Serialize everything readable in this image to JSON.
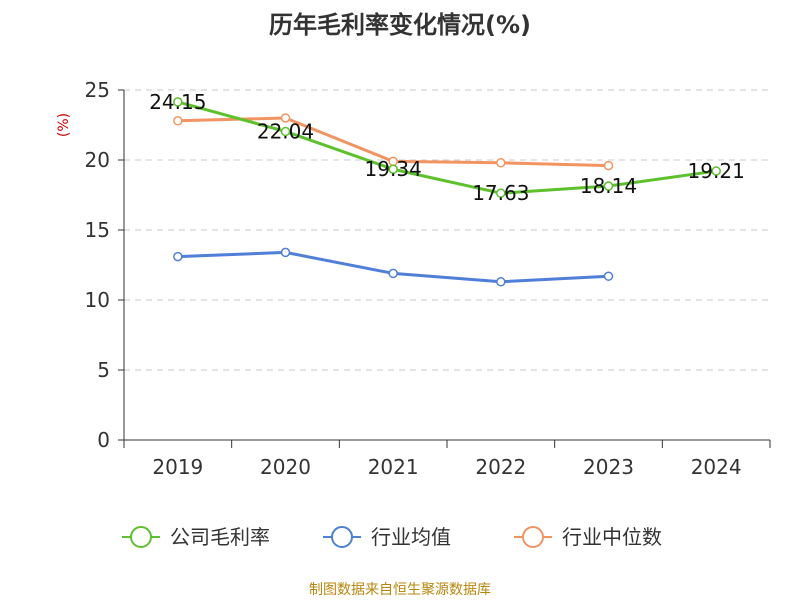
{
  "chart_data": {
    "type": "line",
    "title": "历年毛利率变化情况(%)",
    "ylabel": "(%)",
    "categories": [
      "2019",
      "2020",
      "2021",
      "2022",
      "2023",
      "2024"
    ],
    "ylim": [
      0,
      25
    ],
    "yticks": [
      "0",
      "5",
      "10",
      "15",
      "20",
      "25"
    ],
    "grid": true,
    "legend_position": "bottom",
    "series": [
      {
        "name": "公司毛利率",
        "color": "#5cc12b",
        "values": [
          24.15,
          22.04,
          19.34,
          17.63,
          18.14,
          19.21
        ],
        "labels": [
          "24.15",
          "22.04",
          "19.34",
          "17.63",
          "18.14",
          "19.21"
        ]
      },
      {
        "name": "行业均值",
        "color": "#4f7fd6",
        "values": [
          13.1,
          13.4,
          11.9,
          11.3,
          11.7,
          null
        ]
      },
      {
        "name": "行业中位数",
        "color": "#f29461",
        "values": [
          22.8,
          23.0,
          19.9,
          19.8,
          19.6,
          null
        ]
      }
    ],
    "source": "制图数据来自恒生聚源数据库"
  }
}
